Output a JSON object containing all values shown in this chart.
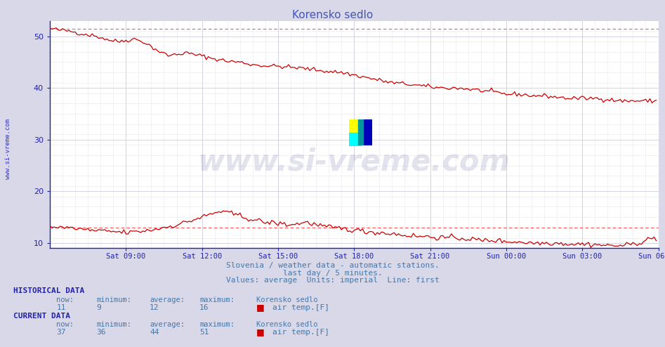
{
  "title": "Korensko sedlo",
  "title_color": "#4455bb",
  "bg_color": "#d8d8e8",
  "plot_bg_color": "#ffffff",
  "grid_color_major": "#ccccdd",
  "grid_color_minor": "#e8e8f0",
  "axis_color": "#2222aa",
  "text_color": "#4477aa",
  "xlabel_ticks": [
    "Sat 09:00",
    "Sat 12:00",
    "Sat 15:00",
    "Sat 18:00",
    "Sat 21:00",
    "Sun 00:00",
    "Sun 03:00",
    "Sun 06:00"
  ],
  "ylabel_ticks": [
    10,
    20,
    30,
    40,
    50
  ],
  "ylim": [
    9.0,
    53.0
  ],
  "xlim": [
    0,
    287
  ],
  "watermark_text": "www.si-vreme.com",
  "sidewater_text": "www.si-vreme.com",
  "subtitle1": "Slovenia / weather data - automatic stations.",
  "subtitle2": "last day / 5 minutes.",
  "subtitle3": "Values: average  Units: imperial  Line: first",
  "hist_label": "HISTORICAL DATA",
  "hist_now": 11,
  "hist_min": 9,
  "hist_avg": 12,
  "hist_max": 16,
  "hist_station": "Korensko sedlo",
  "hist_series": "air temp.[F]",
  "curr_label": "CURRENT DATA",
  "curr_now": 37,
  "curr_min": 36,
  "curr_avg": 44,
  "curr_max": 51,
  "curr_station": "Korensko sedlo",
  "curr_series": "air temp.[F]",
  "line_color": "#cc0000",
  "dashed_line_color": "#ff5555",
  "max_dashed_y": 51.5,
  "min_dashed_y": 13.0,
  "logo_colors": [
    "#ffff00",
    "#00ffff",
    "#0000bb",
    "#009999"
  ]
}
